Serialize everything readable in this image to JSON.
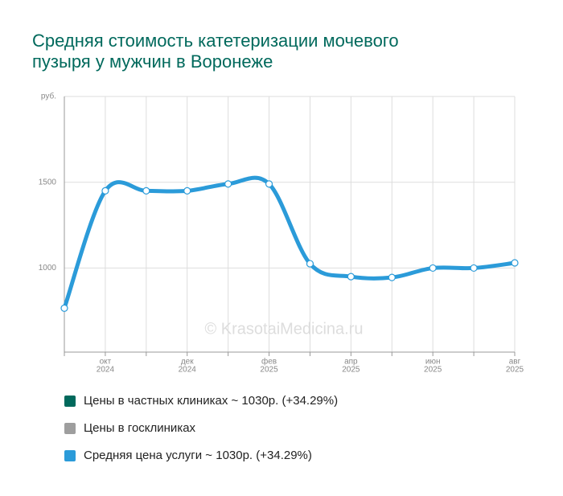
{
  "chart_data": {
    "type": "line",
    "title": "Средняя стоимость катетеризации мочевого пузыря у мужчин в Воронеже",
    "watermark": "© KrasotaiMedicina.ru",
    "categories": [
      null,
      [
        "окт",
        "2024"
      ],
      null,
      [
        "дек",
        "2024"
      ],
      null,
      [
        "фев",
        "2025"
      ],
      null,
      [
        "апр",
        "2025"
      ],
      null,
      [
        "июн",
        "2025"
      ],
      null,
      [
        "авг",
        "2025"
      ]
    ],
    "series": [
      {
        "name": "Цены в частных клиниках ~ 1030р. (+34.29%)",
        "color": "#00695c"
      },
      {
        "name": "Цены в госклиниках",
        "color": "#9e9e9e"
      },
      {
        "name": "Средняя цена услуги ~ 1030р. (+34.29%)",
        "color": "#2b9bd9",
        "values": [
          766,
          1450,
          1450,
          1450,
          1490,
          1490,
          1025,
          950,
          945,
          1000,
          1000,
          1030
        ]
      }
    ],
    "ylim": [
      510,
      2000
    ],
    "yticks": [
      1000,
      1500,
      {
        "value": 2000,
        "label": "руб."
      }
    ],
    "grid": true
  }
}
